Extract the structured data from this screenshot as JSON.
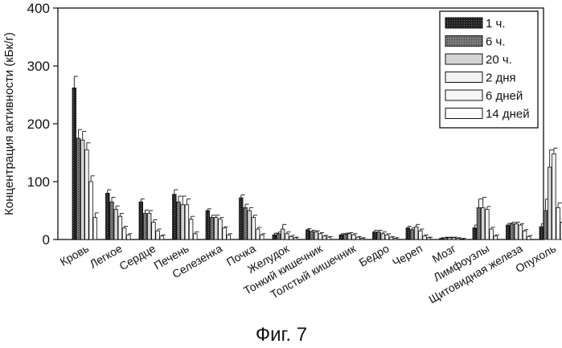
{
  "chart_data": {
    "type": "bar",
    "ylabel": "Концентрация активности (кБк/г)",
    "ylim": [
      0,
      400
    ],
    "yticks": [
      0,
      100,
      200,
      300,
      400
    ],
    "caption": "Фиг. 7",
    "legend_position": "top-right",
    "categories": [
      "Кровь",
      "Легкое",
      "Сердце",
      "Печень",
      "Селезенка",
      "Почка",
      "Желудок",
      "Тонкий кишечник",
      "Толстый кишечник",
      "Бедро",
      "Череп",
      "Мозг",
      "Лимфоузлы",
      "Щитовидная железа",
      "Опухоль"
    ],
    "series": [
      {
        "name": "1 ч.",
        "values": [
          262,
          80,
          65,
          78,
          50,
          72,
          8,
          17,
          8,
          13,
          20,
          2,
          20,
          25,
          22
        ],
        "errors": [
          20,
          6,
          5,
          8,
          3,
          5,
          3,
          2,
          2,
          3,
          3,
          1,
          5,
          3,
          5
        ]
      },
      {
        "name": "6 ч.",
        "values": [
          175,
          65,
          45,
          65,
          38,
          55,
          10,
          14,
          9,
          13,
          17,
          3,
          55,
          27,
          50
        ],
        "errors": [
          15,
          8,
          6,
          10,
          4,
          6,
          3,
          2,
          2,
          3,
          3,
          1,
          15,
          3,
          20
        ]
      },
      {
        "name": "20 ч.",
        "values": [
          172,
          52,
          45,
          60,
          38,
          50,
          18,
          13,
          10,
          10,
          22,
          3,
          55,
          27,
          125
        ],
        "errors": [
          15,
          6,
          5,
          15,
          4,
          5,
          8,
          2,
          2,
          3,
          4,
          1,
          18,
          3,
          30
        ]
      },
      {
        "name": "2 дня",
        "values": [
          155,
          40,
          30,
          60,
          35,
          38,
          10,
          10,
          8,
          8,
          15,
          3,
          52,
          25,
          148
        ],
        "errors": [
          12,
          5,
          4,
          10,
          3,
          4,
          3,
          2,
          2,
          2,
          3,
          1,
          5,
          2,
          10
        ]
      },
      {
        "name": "6 дней",
        "values": [
          100,
          20,
          15,
          35,
          20,
          18,
          5,
          6,
          4,
          4,
          6,
          2,
          18,
          15,
          55
        ],
        "errors": [
          10,
          3,
          3,
          5,
          2,
          3,
          2,
          1,
          1,
          1,
          2,
          1,
          3,
          2,
          8
        ]
      },
      {
        "name": "14 дней",
        "values": [
          38,
          8,
          6,
          10,
          8,
          8,
          3,
          4,
          2,
          2,
          3,
          1,
          6,
          5,
          30
        ],
        "errors": [
          8,
          2,
          2,
          3,
          2,
          2,
          1,
          1,
          1,
          1,
          1,
          1,
          2,
          2,
          8
        ]
      }
    ],
    "legend_fills": [
      "#222222",
      "#7a7a7a",
      "#d4d4d4",
      "#f2f2f2",
      "#f6f6f6",
      "#fbfbfb"
    ]
  }
}
